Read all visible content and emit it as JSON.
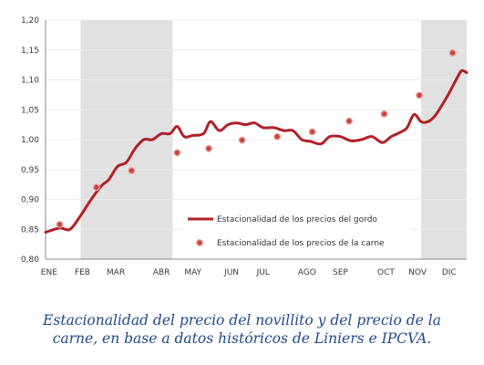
{
  "caption": {
    "line1": "Estacionalidad del precio del novillito y del precio de la",
    "line2": "carne, en base a datos históricos de Liniers e IPCVA."
  },
  "colors": {
    "line": "#b22027",
    "marker_fill": "#c4443e",
    "marker_edge": "#ea9a93",
    "shading": "#e1e1e1",
    "grid": "#ececec",
    "axis": "#8a8a8a"
  },
  "chart_data": {
    "type": "line",
    "title": "",
    "xlabel": "",
    "ylabel": "",
    "ylim": [
      0.8,
      1.2
    ],
    "xlim": [
      0,
      12
    ],
    "grid": true,
    "legend_position": "bottom-center",
    "x_tick_labels": [
      "ENE",
      "FEB",
      "MAR",
      "ABR",
      "MAY",
      "JUN",
      "JUL",
      "AGO",
      "SEP",
      "OCT",
      "NOV",
      "DIC"
    ],
    "x_tick_positions": [
      0.1,
      1.05,
      2.0,
      3.3,
      4.2,
      5.3,
      6.2,
      7.45,
      8.4,
      9.7,
      10.6,
      11.5
    ],
    "y_tick_labels": [
      "0,80",
      "0,85",
      "0,90",
      "0,95",
      "1,00",
      "1,05",
      "1,10",
      "1,15",
      "1,20"
    ],
    "y_ticks": [
      0.8,
      0.85,
      0.9,
      0.95,
      1.0,
      1.05,
      1.1,
      1.15,
      1.2
    ],
    "shaded_x_ranges": [
      [
        1.0,
        3.62
      ],
      [
        10.7,
        12.0
      ]
    ],
    "series": [
      {
        "name": "Estacionalidad de los precios del gordo",
        "style": "line",
        "x": [
          0.0,
          0.4,
          0.7,
          1.0,
          1.3,
          1.6,
          1.8,
          2.05,
          2.3,
          2.55,
          2.8,
          3.05,
          3.3,
          3.55,
          3.75,
          3.95,
          4.2,
          4.5,
          4.7,
          4.95,
          5.2,
          5.45,
          5.7,
          5.95,
          6.2,
          6.5,
          6.8,
          7.05,
          7.3,
          7.55,
          7.85,
          8.1,
          8.4,
          8.7,
          9.0,
          9.3,
          9.6,
          9.85,
          10.1,
          10.3,
          10.5,
          10.7,
          10.9,
          11.1,
          11.3,
          11.5,
          11.7,
          11.85,
          12.0
        ],
        "y": [
          0.845,
          0.852,
          0.85,
          0.873,
          0.9,
          0.923,
          0.933,
          0.955,
          0.962,
          0.985,
          1.0,
          1.0,
          1.01,
          1.01,
          1.022,
          1.005,
          1.007,
          1.01,
          1.03,
          1.015,
          1.025,
          1.028,
          1.025,
          1.028,
          1.02,
          1.02,
          1.015,
          1.015,
          1.0,
          0.997,
          0.993,
          1.005,
          1.005,
          0.998,
          1.0,
          1.005,
          0.995,
          1.005,
          1.012,
          1.02,
          1.042,
          1.03,
          1.03,
          1.04,
          1.058,
          1.078,
          1.1,
          1.115,
          1.112
        ]
      },
      {
        "name": "Estacionalidad de los precios de la carne",
        "style": "markers",
        "x": [
          0.4,
          1.45,
          2.45,
          3.75,
          4.65,
          5.6,
          6.6,
          7.6,
          8.65,
          9.65,
          10.65,
          11.6
        ],
        "y": [
          0.858,
          0.92,
          0.948,
          0.978,
          0.985,
          0.999,
          1.005,
          1.013,
          1.031,
          1.043,
          1.074,
          1.145
        ]
      }
    ]
  }
}
